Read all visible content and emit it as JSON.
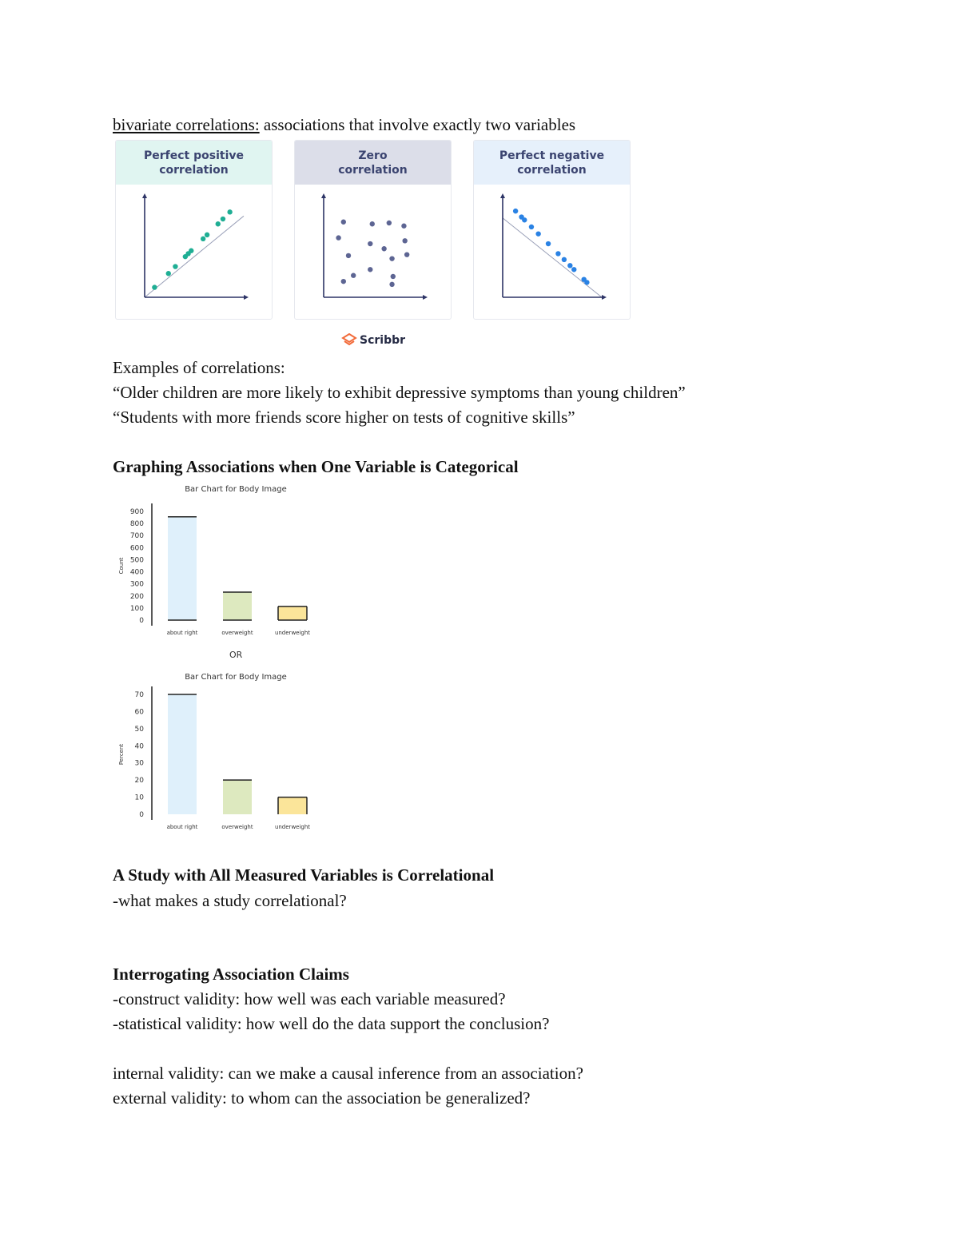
{
  "intro": {
    "term": "bivariate correlations:",
    "definition": " associations that involve exactly two variables"
  },
  "correlation_figure": {
    "panels": [
      {
        "title_line1": "Perfect positive",
        "title_line2": "correlation",
        "header_color": "#e0f5f1",
        "point_color": "#1fae94"
      },
      {
        "title_line1": "Zero",
        "title_line2": "correlation",
        "header_color": "#dcdee9",
        "point_color": "#5d6593"
      },
      {
        "title_line1": "Perfect negative",
        "title_line2": "correlation",
        "header_color": "#e6f0fb",
        "point_color": "#2a82e4"
      }
    ],
    "logo_text": "Scribbr",
    "logo_color": "#f26b3a"
  },
  "examples": {
    "heading": "Examples of correlations:",
    "items": [
      "“Older children are more likely to exhibit depressive symptoms than young children”",
      "“Students with more friends score higher on tests of cognitive skills”"
    ]
  },
  "section_categorical": {
    "heading": "Graphing Associations when One Variable is Categorical",
    "or_label": "OR"
  },
  "section_correlational": {
    "heading": "A Study with All Measured Variables is Correlational",
    "line": "-what makes a study correlational?"
  },
  "section_interrogating": {
    "heading": "Interrogating Association Claims",
    "lines": [
      "-construct validity: how well was each variable measured?",
      "-statistical validity: how well do the data support the conclusion?",
      "internal validity: can we make a causal inference from an association?",
      "external validity: to whom can the association be generalized?"
    ]
  },
  "chart_data": [
    {
      "type": "scatter",
      "title": "Perfect positive correlation",
      "x": [
        1,
        2.4,
        3.1,
        4.1,
        4.4,
        4.7,
        5.9,
        6.3,
        7.4,
        7.9,
        8.6
      ],
      "y": [
        1,
        2.4,
        3.1,
        4.1,
        4.4,
        4.7,
        5.9,
        6.3,
        7.4,
        7.9,
        8.6
      ],
      "xlim": [
        0,
        10
      ],
      "ylim": [
        0,
        10
      ],
      "trendline": true
    },
    {
      "type": "scatter",
      "title": "Zero correlation",
      "x": [
        2.0,
        4.9,
        6.6,
        8.1,
        1.5,
        4.7,
        8.2,
        6.1,
        2.5,
        6.9,
        8.4,
        4.7,
        3.0,
        7.0,
        2.0,
        6.9
      ],
      "y": [
        7.6,
        7.4,
        7.5,
        7.2,
        6.0,
        5.4,
        5.7,
        4.9,
        4.2,
        3.9,
        4.3,
        2.8,
        2.2,
        2.1,
        1.6,
        1.3
      ],
      "xlim": [
        0,
        10
      ],
      "ylim": [
        0,
        10
      ]
    },
    {
      "type": "scatter",
      "title": "Perfect negative correlation",
      "x": [
        1.3,
        1.9,
        2.2,
        2.9,
        3.6,
        4.6,
        5.6,
        6.2,
        6.8,
        7.2,
        8.2,
        8.5
      ],
      "y": [
        8.7,
        8.1,
        7.8,
        7.1,
        6.4,
        5.4,
        4.4,
        3.8,
        3.2,
        2.8,
        1.8,
        1.5
      ],
      "xlim": [
        0,
        10
      ],
      "ylim": [
        0,
        10
      ],
      "trendline": true
    },
    {
      "type": "bar",
      "title": "Bar Chart for Body Image",
      "ylabel": "Count",
      "xlabel": "",
      "categories": [
        "about right",
        "overweight",
        "underweight"
      ],
      "values": [
        855,
        232,
        113
      ],
      "colors": [
        "#dff0fb",
        "#dde9bf",
        "#fbe59a"
      ],
      "yticks": [
        0,
        100,
        200,
        300,
        400,
        500,
        600,
        700,
        800,
        900
      ],
      "ylim": [
        0,
        900
      ]
    },
    {
      "type": "bar",
      "title": "Bar Chart for Body Image",
      "ylabel": "Percent",
      "xlabel": "",
      "categories": [
        "about right",
        "overweight",
        "underweight"
      ],
      "values": [
        70,
        20,
        10
      ],
      "colors": [
        "#dff0fb",
        "#dde9bf",
        "#fbe59a"
      ],
      "yticks": [
        0,
        10,
        20,
        30,
        40,
        50,
        60,
        70
      ],
      "ylim": [
        0,
        70
      ]
    }
  ]
}
